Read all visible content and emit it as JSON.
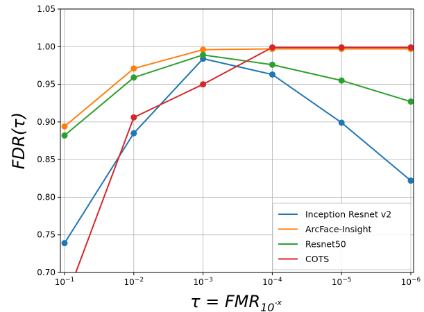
{
  "chart_data": {
    "type": "line",
    "title": "",
    "xlabel_main": "τ = FMR",
    "xlabel_sub": "10",
    "xlabel_sup": "-x",
    "ylabel": "FDR(τ)",
    "x_scale": "log-reversed",
    "x": [
      0.1,
      0.01,
      0.001,
      0.0001,
      1e-05,
      1e-06
    ],
    "x_ticks": [
      {
        "base": "10",
        "exp": "−1"
      },
      {
        "base": "10",
        "exp": "−2"
      },
      {
        "base": "10",
        "exp": "−3"
      },
      {
        "base": "10",
        "exp": "−4"
      },
      {
        "base": "10",
        "exp": "−5"
      },
      {
        "base": "10",
        "exp": "−6"
      }
    ],
    "ylim": [
      0.7,
      1.05
    ],
    "y_ticks": [
      "0.70",
      "0.75",
      "0.80",
      "0.85",
      "0.90",
      "0.95",
      "1.00",
      "1.05"
    ],
    "grid": true,
    "legend_position": "lower-right",
    "series": [
      {
        "name": "Inception Resnet v2",
        "color": "#1f77b4",
        "values": [
          0.739,
          0.885,
          0.984,
          0.963,
          0.899,
          0.822
        ]
      },
      {
        "name": "ArcFace-Insight",
        "color": "#ff7f0e",
        "values": [
          0.894,
          0.971,
          0.996,
          0.997,
          0.997,
          0.997
        ]
      },
      {
        "name": "Resnet50",
        "color": "#2ca02c",
        "values": [
          0.882,
          0.959,
          0.989,
          0.976,
          0.955,
          0.927
        ]
      },
      {
        "name": "COTS",
        "color": "#d62728",
        "values": [
          0.66,
          0.906,
          0.95,
          0.999,
          0.999,
          0.999
        ]
      }
    ]
  }
}
